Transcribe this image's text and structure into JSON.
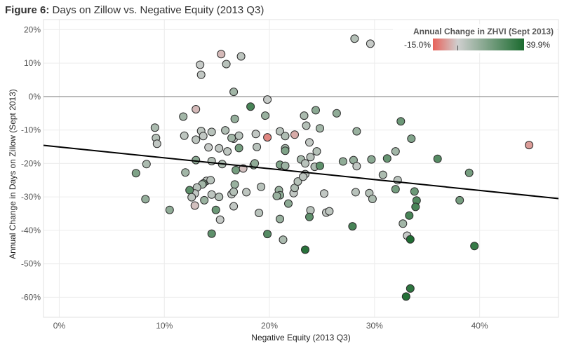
{
  "figure": {
    "label": "Figure 6:",
    "title": "Days on Zillow vs. Negative Equity (2013 Q3)"
  },
  "chart_data": {
    "type": "scatter",
    "xlabel": "Negative Equity (2013 Q3)",
    "ylabel": "Annual Change in Days on Zillow (Sept 2013)",
    "xlim": [
      -0.015,
      0.475
    ],
    "ylim": [
      -0.66,
      0.23
    ],
    "x_ticks": [
      0,
      0.1,
      0.2,
      0.3,
      0.4
    ],
    "x_tick_labels": [
      "0%",
      "10%",
      "20%",
      "30%",
      "40%"
    ],
    "y_ticks": [
      0.2,
      0.1,
      0,
      -0.1,
      -0.2,
      -0.3,
      -0.4,
      -0.5,
      -0.6
    ],
    "y_tick_labels": [
      "20%",
      "10%",
      "0%",
      "-10%",
      "-20%",
      "-30%",
      "-40%",
      "-50%",
      "-60%"
    ],
    "grid": true,
    "zero_line": true,
    "trend_line": {
      "x": [
        -0.015,
        0.475
      ],
      "y": [
        -0.146,
        -0.305
      ]
    },
    "color_legend": {
      "title": "Annual Change in ZHVI (Sept 2013)",
      "min_label": "-15.0%",
      "max_label": "39.9%",
      "min": -0.15,
      "max": 0.399,
      "mid": 0,
      "colors": {
        "low": "#e8625a",
        "mid": "#cfcfcf",
        "high": "#1b6b2f"
      },
      "placement": "top-right"
    },
    "points": [
      [
        0.134,
        0.095,
        0.02
      ],
      [
        0.154,
        0.127,
        -0.03
      ],
      [
        0.135,
        0.065,
        0.03
      ],
      [
        0.159,
        0.097,
        0.05
      ],
      [
        0.173,
        0.12,
        0.04
      ],
      [
        0.281,
        0.173,
        0.06
      ],
      [
        0.296,
        0.158,
        0.02
      ],
      [
        0.166,
        0.014,
        0.1
      ],
      [
        0.198,
        -0.009,
        0.02
      ],
      [
        0.182,
        -0.03,
        0.3
      ],
      [
        0.244,
        -0.041,
        0.15
      ],
      [
        0.264,
        -0.05,
        0.14
      ],
      [
        0.233,
        -0.057,
        0.08
      ],
      [
        0.13,
        -0.038,
        -0.03
      ],
      [
        0.118,
        -0.06,
        0.1
      ],
      [
        0.196,
        -0.057,
        0.12
      ],
      [
        0.167,
        -0.067,
        0.13
      ],
      [
        0.091,
        -0.093,
        0.08
      ],
      [
        0.092,
        -0.124,
        0.06
      ],
      [
        0.093,
        -0.141,
        0.03
      ],
      [
        0.119,
        -0.117,
        0.04
      ],
      [
        0.135,
        -0.103,
        0.04
      ],
      [
        0.137,
        -0.118,
        0.03
      ],
      [
        0.145,
        -0.106,
        0.05
      ],
      [
        0.158,
        -0.101,
        0.07
      ],
      [
        0.166,
        -0.126,
        0.03
      ],
      [
        0.171,
        -0.117,
        0.05
      ],
      [
        0.187,
        -0.112,
        0.03
      ],
      [
        0.198,
        -0.122,
        -0.1
      ],
      [
        0.21,
        -0.104,
        0.05
      ],
      [
        0.215,
        -0.118,
        0.07
      ],
      [
        0.224,
        -0.114,
        -0.05
      ],
      [
        0.235,
        -0.087,
        0.06
      ],
      [
        0.248,
        -0.095,
        0.1
      ],
      [
        0.283,
        -0.104,
        0.12
      ],
      [
        0.325,
        -0.074,
        0.22
      ],
      [
        0.335,
        -0.126,
        0.17
      ],
      [
        0.447,
        -0.145,
        -0.07
      ],
      [
        0.13,
        -0.129,
        0.04
      ],
      [
        0.142,
        -0.152,
        0.02
      ],
      [
        0.152,
        -0.155,
        0.03
      ],
      [
        0.16,
        -0.164,
        0.04
      ],
      [
        0.171,
        -0.154,
        0.2
      ],
      [
        0.188,
        -0.151,
        0.05
      ],
      [
        0.215,
        -0.155,
        0.09
      ],
      [
        0.238,
        -0.137,
        0.03
      ],
      [
        0.245,
        -0.164,
        0.06
      ],
      [
        0.215,
        -0.162,
        0.18
      ],
      [
        0.12,
        -0.227,
        0.1
      ],
      [
        0.083,
        -0.202,
        0.08
      ],
      [
        0.073,
        -0.229,
        0.18
      ],
      [
        0.13,
        -0.19,
        0.15
      ],
      [
        0.145,
        -0.193,
        0.06
      ],
      [
        0.155,
        -0.202,
        0.08
      ],
      [
        0.168,
        -0.22,
        0.2
      ],
      [
        0.175,
        -0.215,
        -0.02
      ],
      [
        0.185,
        -0.205,
        0.16
      ],
      [
        0.186,
        -0.2,
        0.14
      ],
      [
        0.21,
        -0.204,
        0.18
      ],
      [
        0.215,
        -0.207,
        0.11
      ],
      [
        0.23,
        -0.188,
        0.09
      ],
      [
        0.239,
        -0.181,
        0.05
      ],
      [
        0.243,
        -0.21,
        0.07
      ],
      [
        0.248,
        -0.207,
        0.25
      ],
      [
        0.27,
        -0.194,
        0.14
      ],
      [
        0.28,
        -0.19,
        0.13
      ],
      [
        0.283,
        -0.208,
        0.03
      ],
      [
        0.297,
        -0.188,
        0.15
      ],
      [
        0.32,
        -0.164,
        0.1
      ],
      [
        0.312,
        -0.185,
        0.23
      ],
      [
        0.36,
        -0.186,
        0.27
      ],
      [
        0.234,
        -0.2,
        0.05
      ],
      [
        0.14,
        -0.252,
        0.04
      ],
      [
        0.137,
        -0.26,
        0.2
      ],
      [
        0.136,
        -0.263,
        0.1
      ],
      [
        0.144,
        -0.25,
        0.05
      ],
      [
        0.131,
        -0.272,
        0.05
      ],
      [
        0.129,
        -0.29,
        0.03
      ],
      [
        0.124,
        -0.28,
        0.25
      ],
      [
        0.145,
        -0.293,
        0.04
      ],
      [
        0.152,
        -0.3,
        0.06
      ],
      [
        0.138,
        -0.31,
        0.12
      ],
      [
        0.129,
        -0.326,
        -0.02
      ],
      [
        0.082,
        -0.307,
        0.13
      ],
      [
        0.105,
        -0.339,
        0.14
      ],
      [
        0.164,
        -0.292,
        0.03
      ],
      [
        0.167,
        -0.263,
        0.12
      ],
      [
        0.166,
        -0.285,
        0.06
      ],
      [
        0.178,
        -0.286,
        0.04
      ],
      [
        0.192,
        -0.27,
        0.05
      ],
      [
        0.209,
        -0.28,
        0.12
      ],
      [
        0.21,
        -0.295,
        0.15
      ],
      [
        0.207,
        -0.297,
        0.12
      ],
      [
        0.218,
        -0.32,
        0.15
      ],
      [
        0.223,
        -0.289,
        0.03
      ],
      [
        0.224,
        -0.273,
        0.07
      ],
      [
        0.227,
        -0.254,
        0.06
      ],
      [
        0.234,
        -0.232,
        0.04
      ],
      [
        0.232,
        -0.24,
        0.04
      ],
      [
        0.252,
        -0.29,
        0.03
      ],
      [
        0.254,
        -0.347,
        0.03
      ],
      [
        0.257,
        -0.343,
        0.04
      ],
      [
        0.239,
        -0.34,
        0.05
      ],
      [
        0.238,
        -0.36,
        0.25
      ],
      [
        0.21,
        -0.366,
        0.12
      ],
      [
        0.213,
        -0.428,
        0.08
      ],
      [
        0.198,
        -0.411,
        0.27
      ],
      [
        0.145,
        -0.41,
        0.25
      ],
      [
        0.149,
        -0.339,
        0.22
      ],
      [
        0.153,
        -0.368,
        0.02
      ],
      [
        0.166,
        -0.328,
        0.03
      ],
      [
        0.19,
        -0.348,
        0.05
      ],
      [
        0.279,
        -0.388,
        0.3
      ],
      [
        0.282,
        -0.286,
        0.05
      ],
      [
        0.295,
        -0.289,
        0.06
      ],
      [
        0.298,
        -0.306,
        0.08
      ],
      [
        0.308,
        -0.234,
        0.08
      ],
      [
        0.322,
        -0.25,
        0.05
      ],
      [
        0.32,
        -0.277,
        0.2
      ],
      [
        0.338,
        -0.284,
        0.22
      ],
      [
        0.34,
        -0.311,
        0.28
      ],
      [
        0.339,
        -0.33,
        0.3
      ],
      [
        0.333,
        -0.356,
        0.3
      ],
      [
        0.327,
        -0.38,
        0.1
      ],
      [
        0.331,
        -0.416,
        0.02
      ],
      [
        0.334,
        -0.427,
        0.39
      ],
      [
        0.381,
        -0.31,
        0.2
      ],
      [
        0.39,
        -0.228,
        0.2
      ],
      [
        0.395,
        -0.447,
        0.34
      ],
      [
        0.33,
        -0.598,
        0.38
      ],
      [
        0.334,
        -0.574,
        0.36
      ],
      [
        0.234,
        -0.458,
        0.37
      ],
      [
        0.164,
        -0.124,
        0.1
      ],
      [
        0.126,
        -0.301,
        0.04
      ]
    ]
  }
}
